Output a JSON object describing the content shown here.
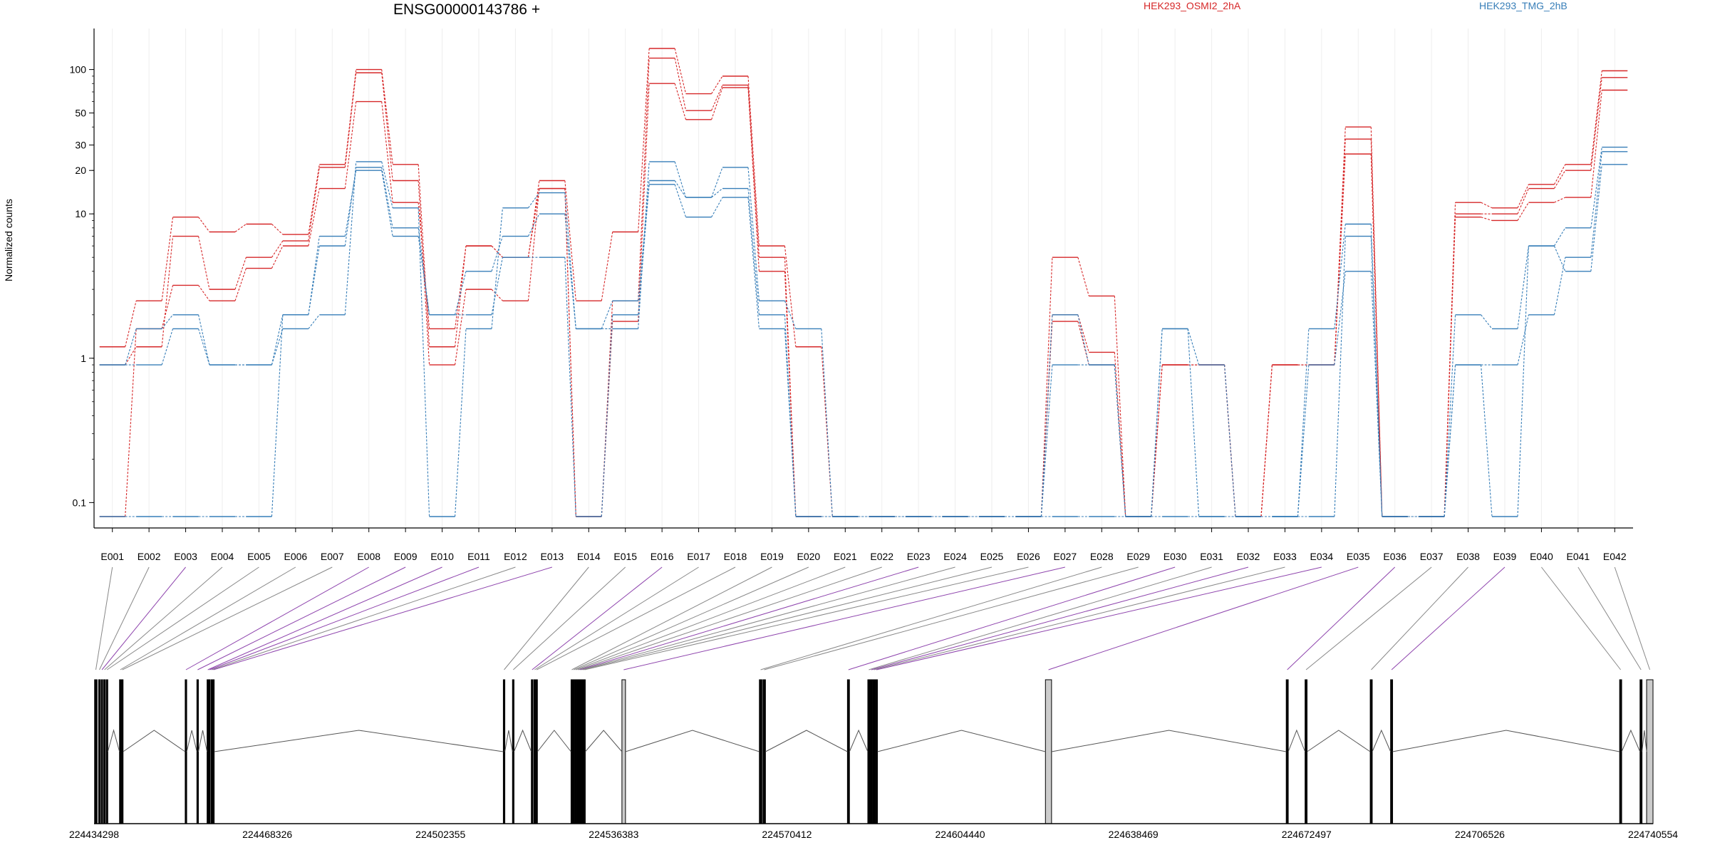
{
  "chart_data": {
    "type": "line",
    "title": "ENSG00000143786 +",
    "ylabel": "Normalized counts",
    "y_scale": "log",
    "y_ticks": [
      0.1,
      1,
      10,
      20,
      30,
      50,
      100
    ],
    "y_ticklabels": [
      "0.1",
      "1",
      "10",
      "20",
      "30",
      "50",
      "100"
    ],
    "categories": [
      "E001",
      "E002",
      "E003",
      "E004",
      "E005",
      "E006",
      "E007",
      "E008",
      "E009",
      "E010",
      "E011",
      "E012",
      "E013",
      "E014",
      "E015",
      "E016",
      "E017",
      "E018",
      "E019",
      "E020",
      "E021",
      "E022",
      "E023",
      "E024",
      "E025",
      "E026",
      "E027",
      "E028",
      "E029",
      "E030",
      "E031",
      "E032",
      "E033",
      "E034",
      "E035",
      "E036",
      "E037",
      "E038",
      "E039",
      "E040",
      "E041",
      "E042"
    ],
    "legend": [
      {
        "label": "HEK293_OSMI2_2hA",
        "color": "#d62728"
      },
      {
        "label": "HEK293_TMG_2hB",
        "color": "#377eb8"
      }
    ],
    "series": [
      {
        "group": "HEK293_OSMI2_2hA",
        "color": "#d62728",
        "values": [
          1.2,
          2.5,
          9.5,
          7.5,
          8.5,
          7.2,
          22,
          100,
          22,
          1.2,
          6,
          5,
          17,
          2.5,
          7.5,
          140,
          68,
          90,
          6,
          1.2,
          0.08,
          0.08,
          0.08,
          0.08,
          0.08,
          0.08,
          5,
          2.7,
          0.08,
          0.9,
          0.9,
          0.08,
          0.9,
          0.9,
          40,
          0.08,
          0.08,
          12,
          11,
          16,
          22,
          98
        ]
      },
      {
        "group": "HEK293_OSMI2_2hA",
        "color": "#d62728",
        "values": [
          0.9,
          1.2,
          7,
          3,
          5,
          6.5,
          21,
          95,
          17,
          0.9,
          3,
          2.5,
          15,
          0.08,
          2.5,
          120,
          52,
          78,
          5,
          0.08,
          0.08,
          0.08,
          0.08,
          0.08,
          0.08,
          0.08,
          2,
          1.1,
          0.08,
          0.9,
          0.9,
          0.08,
          0.9,
          0.9,
          33,
          0.08,
          0.08,
          10,
          10,
          15,
          20,
          88
        ]
      },
      {
        "group": "HEK293_OSMI2_2hA",
        "color": "#d62728",
        "values": [
          0.08,
          1.6,
          3.2,
          2.5,
          4.2,
          6,
          15,
          60,
          12,
          1.6,
          6,
          5,
          15,
          0.08,
          1.8,
          80,
          45,
          75,
          4,
          0.08,
          0.08,
          0.08,
          0.08,
          0.08,
          0.08,
          0.08,
          1.8,
          0.9,
          0.08,
          0.9,
          0.9,
          0.08,
          0.9,
          0.9,
          26,
          0.08,
          0.08,
          9.5,
          9,
          12,
          13,
          72
        ]
      },
      {
        "group": "HEK293_TMG_2hB",
        "color": "#377eb8",
        "values": [
          0.9,
          0.9,
          1.6,
          0.9,
          0.9,
          1.6,
          2,
          23,
          11,
          0.08,
          1.6,
          11,
          14,
          1.6,
          1.6,
          23,
          13,
          21,
          2.5,
          1.6,
          0.08,
          0.08,
          0.08,
          0.08,
          0.08,
          0.08,
          2,
          0.9,
          0.08,
          1.6,
          0.08,
          0.08,
          0.08,
          1.6,
          8.5,
          0.08,
          0.08,
          2,
          1.6,
          6,
          8,
          29
        ]
      },
      {
        "group": "HEK293_TMG_2hB",
        "color": "#377eb8",
        "values": [
          0.9,
          1.6,
          2,
          0.9,
          0.9,
          2,
          6,
          21,
          8,
          2,
          4,
          7,
          10,
          1.6,
          2.5,
          17,
          13,
          15,
          2,
          0.08,
          0.08,
          0.08,
          0.08,
          0.08,
          0.08,
          0.08,
          0.9,
          0.9,
          0.08,
          1.6,
          0.9,
          0.08,
          0.08,
          0.08,
          7,
          0.08,
          0.08,
          0.9,
          0.9,
          2,
          5,
          27
        ]
      },
      {
        "group": "HEK293_TMG_2hB",
        "color": "#377eb8",
        "values": [
          0.08,
          0.08,
          0.08,
          0.08,
          0.08,
          2,
          7,
          20,
          7,
          2,
          2,
          5,
          5,
          0.08,
          2,
          16,
          9.5,
          13,
          1.6,
          0.08,
          0.08,
          0.08,
          0.08,
          0.08,
          0.08,
          0.08,
          0.08,
          0.08,
          0.08,
          0.08,
          0.08,
          0.08,
          0.08,
          0.9,
          4,
          0.08,
          0.08,
          0.9,
          0.08,
          6,
          4,
          22
        ]
      }
    ],
    "gene_model": {
      "genomic_ticks": [
        "224434298",
        "224468326",
        "224502355",
        "224536383",
        "224570412",
        "224604440",
        "224638469",
        "224672497",
        "224706526",
        "224740554"
      ],
      "start": 224434298,
      "end": 224740554,
      "exons": [
        {
          "id": "E001",
          "start": 224434400,
          "end": 224434900
        },
        {
          "id": "E002",
          "start": 224435200,
          "end": 224435500
        },
        {
          "id": "E003",
          "start": 224435700,
          "end": 224436000
        },
        {
          "id": "E004",
          "start": 224436200,
          "end": 224436500
        },
        {
          "id": "E005",
          "start": 224436700,
          "end": 224437000
        },
        {
          "id": "E006",
          "start": 224439300,
          "end": 224439600
        },
        {
          "id": "E007",
          "start": 224439700,
          "end": 224440000
        },
        {
          "id": "E008",
          "start": 224452200,
          "end": 224452500
        },
        {
          "id": "E009",
          "start": 224454500,
          "end": 224454800
        },
        {
          "id": "E010",
          "start": 224456500,
          "end": 224456800
        },
        {
          "id": "E011",
          "start": 224456900,
          "end": 224457100
        },
        {
          "id": "E012",
          "start": 224457300,
          "end": 224457500
        },
        {
          "id": "E013",
          "start": 224457600,
          "end": 224457900
        },
        {
          "id": "E014",
          "start": 224514700,
          "end": 224515000
        },
        {
          "id": "E015",
          "start": 224516500,
          "end": 224516800
        },
        {
          "id": "E016",
          "start": 224520200,
          "end": 224520500
        },
        {
          "id": "E017",
          "start": 224520700,
          "end": 224521000
        },
        {
          "id": "E018",
          "start": 224521100,
          "end": 224521400
        },
        {
          "id": "E019",
          "start": 224528000,
          "end": 224528300
        },
        {
          "id": "E020",
          "start": 224528400,
          "end": 224528700
        },
        {
          "id": "E021",
          "start": 224528800,
          "end": 224529100
        },
        {
          "id": "E022",
          "start": 224529200,
          "end": 224529500
        },
        {
          "id": "E023",
          "start": 224529600,
          "end": 224529800
        },
        {
          "id": "E024",
          "start": 224529900,
          "end": 224530100
        },
        {
          "id": "E025",
          "start": 224530200,
          "end": 224530400
        },
        {
          "id": "E026",
          "start": 224530500,
          "end": 224530800
        },
        {
          "id": "E027",
          "start": 224538000,
          "end": 224538700
        },
        {
          "id": "E028",
          "start": 224565000,
          "end": 224565500
        },
        {
          "id": "E029",
          "start": 224565700,
          "end": 224566200
        },
        {
          "id": "E030",
          "start": 224582300,
          "end": 224582700
        },
        {
          "id": "E031",
          "start": 224586300,
          "end": 224586700
        },
        {
          "id": "E032",
          "start": 224586800,
          "end": 224587200
        },
        {
          "id": "E033",
          "start": 224587300,
          "end": 224587700
        },
        {
          "id": "E034",
          "start": 224587800,
          "end": 224588200
        },
        {
          "id": "E035",
          "start": 224621200,
          "end": 224622400
        },
        {
          "id": "E036",
          "start": 224668500,
          "end": 224668900
        },
        {
          "id": "E037",
          "start": 224672200,
          "end": 224672600
        },
        {
          "id": "E038",
          "start": 224685000,
          "end": 224685400
        },
        {
          "id": "E039",
          "start": 224689000,
          "end": 224689400
        },
        {
          "id": "E040",
          "start": 224734000,
          "end": 224734400
        },
        {
          "id": "E041",
          "start": 224738000,
          "end": 224738400
        },
        {
          "id": "E042",
          "start": 224739300,
          "end": 224740554
        }
      ],
      "highlight_color": "#8e44ad"
    }
  }
}
